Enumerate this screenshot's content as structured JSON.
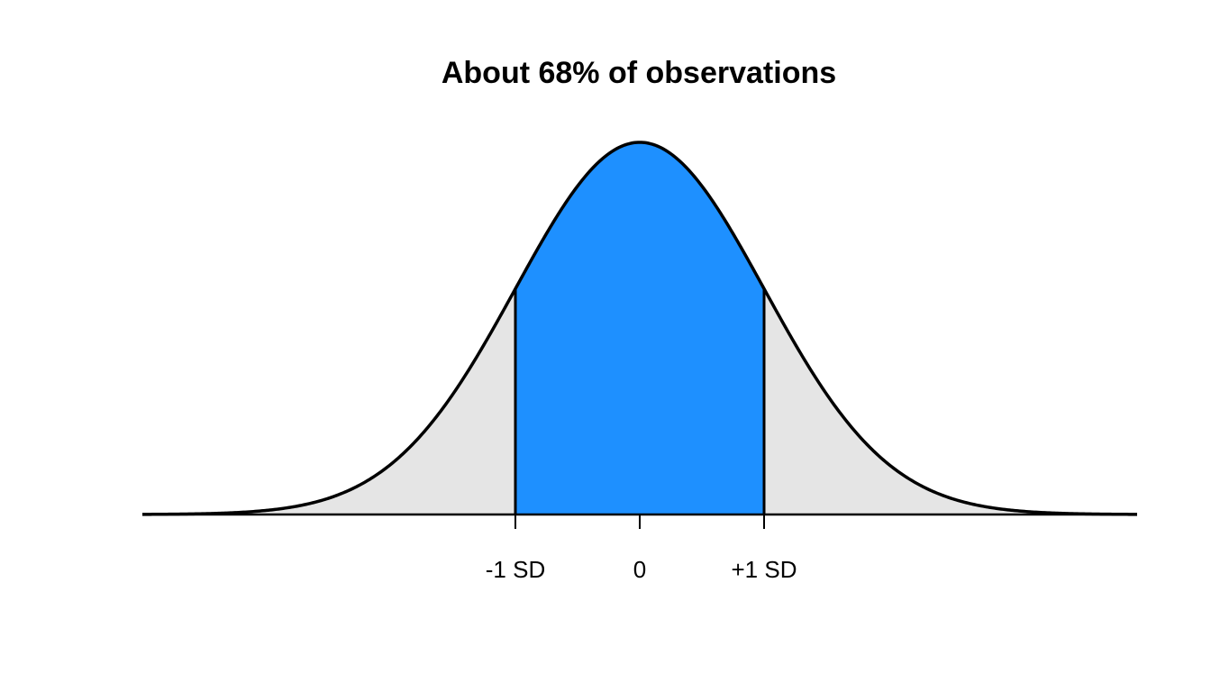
{
  "chart_data": {
    "type": "area",
    "title": "About 68% of observations",
    "distribution": "standard normal density",
    "xlim": [
      -4,
      4
    ],
    "ylim": [
      0,
      0.3989
    ],
    "shaded_interval": [
      -1,
      1
    ],
    "shaded_proportion": 0.68,
    "ticks": [
      {
        "x": -1,
        "label": "-1 SD"
      },
      {
        "x": 0,
        "label": "0"
      },
      {
        "x": 1,
        "label": "+1 SD"
      }
    ],
    "boundary_lines": [
      -1,
      1
    ],
    "grid": false,
    "legend": "none",
    "colors": {
      "shaded_region": "#1E90FF",
      "tail_region": "#E5E5E5",
      "curve": "#000000"
    }
  }
}
